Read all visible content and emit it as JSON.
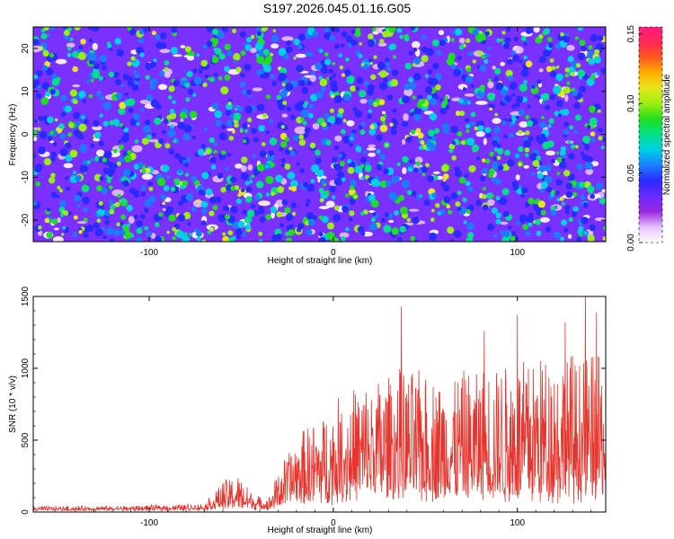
{
  "title": "S197.2026.045.01.16.G05",
  "colors": {
    "snr_line": "#e8342c",
    "colormap": [
      "#ffffff",
      "#e6c2ff",
      "#9b28e0",
      "#6a2bff",
      "#2a2aff",
      "#1c7cff",
      "#00d0e6",
      "#00e08a",
      "#1fde1f",
      "#9aee10",
      "#e6e61a",
      "#ffb000",
      "#ff5a20",
      "#ff2a55",
      "#ff1a7a"
    ]
  },
  "chart_data": [
    {
      "type": "heatmap",
      "xlabel": "Height of straight line (km)",
      "ylabel": "Frequency (Hz)",
      "xlim": [
        -163,
        148
      ],
      "ylim": [
        -25,
        25
      ],
      "x_ticks": [
        -100,
        0,
        100
      ],
      "y_ticks": [
        -20,
        -10,
        0,
        10,
        20
      ],
      "colorbar": {
        "label": "Normalized spectral amplitude",
        "range": [
          0,
          0.155
        ],
        "ticks": [
          "0.00",
          "0.05",
          "0.10",
          "0.15"
        ]
      },
      "hot_spots": [
        {
          "x": 12,
          "y": -14.5,
          "v": 0.11
        },
        {
          "x": 29,
          "y": -2.5,
          "v": 0.1
        },
        {
          "x": 100,
          "y": -5,
          "v": 0.07
        },
        {
          "x": 84,
          "y": 1,
          "v": 0.08
        },
        {
          "x": -78,
          "y": 14,
          "v": 0.08
        },
        {
          "x": 116,
          "y": 24,
          "v": 0.08
        },
        {
          "x": -36,
          "y": -7.5,
          "v": 0.07
        },
        {
          "x": 137,
          "y": -23,
          "v": 0.07
        },
        {
          "x": -136,
          "y": 4,
          "v": 0.07
        },
        {
          "x": 10,
          "y": -1,
          "v": 0.07
        }
      ]
    },
    {
      "type": "line",
      "xlabel": "Height of straight line (km)",
      "ylabel": "SNR (10 * v/v)",
      "xlim": [
        -163,
        148
      ],
      "ylim": [
        0,
        1500
      ],
      "x_ticks": [
        -100,
        0,
        100
      ],
      "y_ticks": [
        0,
        500,
        1000,
        1500
      ],
      "envelope": [
        {
          "x": -163,
          "base": 15,
          "peak": 40
        },
        {
          "x": -110,
          "base": 15,
          "peak": 45
        },
        {
          "x": -70,
          "base": 20,
          "peak": 60
        },
        {
          "x": -60,
          "base": 30,
          "peak": 220
        },
        {
          "x": -52,
          "base": 40,
          "peak": 260
        },
        {
          "x": -42,
          "base": 25,
          "peak": 120
        },
        {
          "x": -35,
          "base": 20,
          "peak": 100
        },
        {
          "x": -30,
          "base": 60,
          "peak": 290
        },
        {
          "x": -20,
          "base": 90,
          "peak": 540
        },
        {
          "x": -5,
          "base": 110,
          "peak": 700
        },
        {
          "x": 10,
          "base": 130,
          "peak": 880
        },
        {
          "x": 35,
          "base": 140,
          "peak": 1000
        },
        {
          "x": 60,
          "base": 130,
          "peak": 950
        },
        {
          "x": 90,
          "base": 120,
          "peak": 1050
        },
        {
          "x": 115,
          "base": 130,
          "peak": 1150
        },
        {
          "x": 148,
          "base": 110,
          "peak": 1100
        }
      ],
      "spikes": [
        {
          "x": 37,
          "y": 1430
        },
        {
          "x": 137,
          "y": 1500
        },
        {
          "x": 100,
          "y": 1370
        },
        {
          "x": 126,
          "y": 1320
        },
        {
          "x": 143,
          "y": 1390
        },
        {
          "x": 82,
          "y": 1260
        }
      ]
    }
  ]
}
